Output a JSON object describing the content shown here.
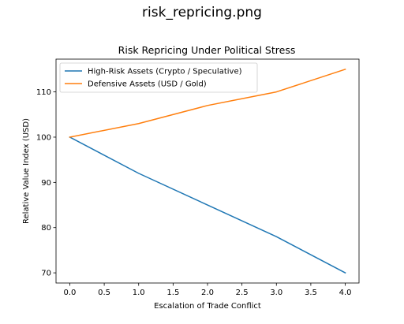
{
  "window": {
    "title": "risk_repricing.png"
  },
  "chart_data": {
    "type": "line",
    "title": "Risk Repricing Under Political Stress",
    "xlabel": "Escalation of Trade Conflict",
    "ylabel": "Relative Value Index (USD)",
    "x": [
      0,
      1,
      2,
      3,
      4
    ],
    "series": [
      {
        "name": "High-Risk Assets (Crypto / Speculative)",
        "color": "#1f77b4",
        "values": [
          100,
          92,
          85,
          78,
          70
        ]
      },
      {
        "name": "Defensive Assets (USD / Gold)",
        "color": "#ff7f0e",
        "values": [
          100,
          103,
          107,
          110,
          115
        ]
      }
    ],
    "xlim": [
      -0.2,
      4.2
    ],
    "ylim": [
      67.75,
      117.25
    ],
    "xticks": [
      0.0,
      0.5,
      1.0,
      1.5,
      2.0,
      2.5,
      3.0,
      3.5,
      4.0
    ],
    "xtick_labels": [
      "0.0",
      "0.5",
      "1.0",
      "1.5",
      "2.0",
      "2.5",
      "3.0",
      "3.5",
      "4.0"
    ],
    "yticks": [
      70,
      80,
      90,
      100,
      110
    ],
    "ytick_labels": [
      "70",
      "80",
      "90",
      "100",
      "110"
    ],
    "legend": "upper-left",
    "grid": false
  }
}
